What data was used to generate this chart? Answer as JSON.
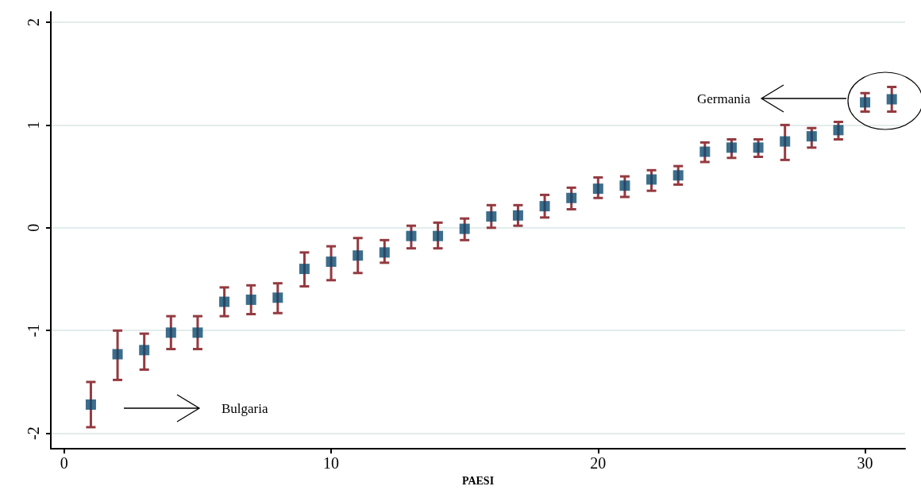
{
  "chart_data": {
    "type": "scatter",
    "xlabel": "PAESI",
    "x": [
      1,
      2,
      3,
      4,
      5,
      6,
      7,
      8,
      9,
      10,
      11,
      12,
      13,
      14,
      15,
      16,
      17,
      18,
      19,
      20,
      21,
      22,
      23,
      24,
      25,
      26,
      27,
      28,
      29,
      30,
      31
    ],
    "series": [
      {
        "color": "#0b4a6e",
        "marker": "square",
        "values": [
          -1.72,
          -1.23,
          -1.19,
          -1.02,
          -1.02,
          -0.72,
          -0.7,
          -0.68,
          -0.4,
          -0.33,
          -0.27,
          -0.24,
          -0.08,
          -0.08,
          -0.01,
          0.11,
          0.12,
          0.21,
          0.29,
          0.38,
          0.41,
          0.47,
          0.51,
          0.74,
          0.78,
          0.78,
          0.84,
          0.89,
          0.95,
          1.22,
          1.25
        ],
        "errors": [
          [
            -1.94,
            -1.5
          ],
          [
            -1.48,
            -1.0
          ],
          [
            -1.38,
            -1.03
          ],
          [
            -1.18,
            -0.86
          ],
          [
            -1.18,
            -0.86
          ],
          [
            -0.86,
            -0.58
          ],
          [
            -0.84,
            -0.56
          ],
          [
            -0.83,
            -0.54
          ],
          [
            -0.57,
            -0.24
          ],
          [
            -0.51,
            -0.18
          ],
          [
            -0.44,
            -0.1
          ],
          [
            -0.34,
            -0.12
          ],
          [
            -0.2,
            0.02
          ],
          [
            -0.2,
            0.05
          ],
          [
            -0.12,
            0.09
          ],
          [
            0.0,
            0.22
          ],
          [
            0.02,
            0.22
          ],
          [
            0.1,
            0.32
          ],
          [
            0.18,
            0.39
          ],
          [
            0.29,
            0.49
          ],
          [
            0.3,
            0.5
          ],
          [
            0.36,
            0.56
          ],
          [
            0.42,
            0.6
          ],
          [
            0.64,
            0.83
          ],
          [
            0.68,
            0.86
          ],
          [
            0.69,
            0.86
          ],
          [
            0.66,
            1.0
          ],
          [
            0.78,
            0.97
          ],
          [
            0.86,
            1.03
          ],
          [
            1.13,
            1.31
          ],
          [
            1.13,
            1.37
          ]
        ]
      }
    ],
    "xlim": [
      -0.5,
      31.5
    ],
    "xticks": [
      0,
      10,
      20,
      30
    ],
    "ylim": [
      -2.15,
      2.1
    ],
    "yticks": [
      -2,
      -1,
      0,
      1,
      2
    ],
    "grid": "y",
    "annotations": [
      "Bulgaria",
      "Germania"
    ]
  }
}
